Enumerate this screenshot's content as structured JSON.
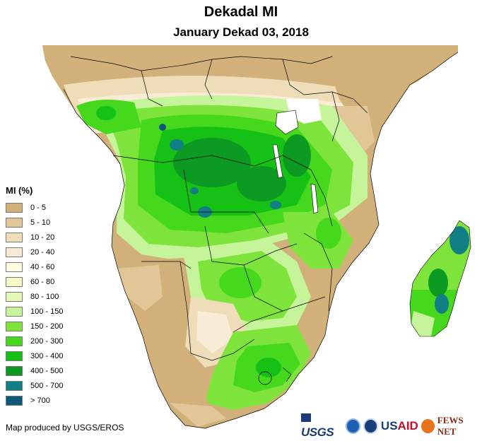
{
  "title": "Dekadal MI",
  "subtitle": "January Dekad 03, 2018",
  "legend": {
    "title": "MI (%)",
    "items": [
      {
        "label": "0 - 5",
        "color": "#d2b07a"
      },
      {
        "label": "5 - 10",
        "color": "#e1c697"
      },
      {
        "label": "10 - 20",
        "color": "#efdcb8"
      },
      {
        "label": "20 - 40",
        "color": "#f8ecd6"
      },
      {
        "label": "40 - 60",
        "color": "#fefde2"
      },
      {
        "label": "60 - 80",
        "color": "#f5fbc3"
      },
      {
        "label": "80 - 100",
        "color": "#e3f8b5"
      },
      {
        "label": "100 - 150",
        "color": "#c6f49a"
      },
      {
        "label": "150 - 200",
        "color": "#7ee33b"
      },
      {
        "label": "200 - 300",
        "color": "#46d81c"
      },
      {
        "label": "300 - 400",
        "color": "#14c114"
      },
      {
        "label": "400 - 500",
        "color": "#0d9a22"
      },
      {
        "label": "500 - 700",
        "color": "#127f85"
      },
      {
        "label": "> 700",
        "color": "#0b5a7c"
      }
    ]
  },
  "credit": "Map produced by USGS/EROS",
  "logos": {
    "usgs": "USGS",
    "usaid_us": "US",
    "usaid_aid": "AID",
    "fews": "FEWS NET"
  },
  "colors": {
    "ocean": "#ffffff",
    "outside_land": "#d2b07a",
    "border": "#000000"
  }
}
